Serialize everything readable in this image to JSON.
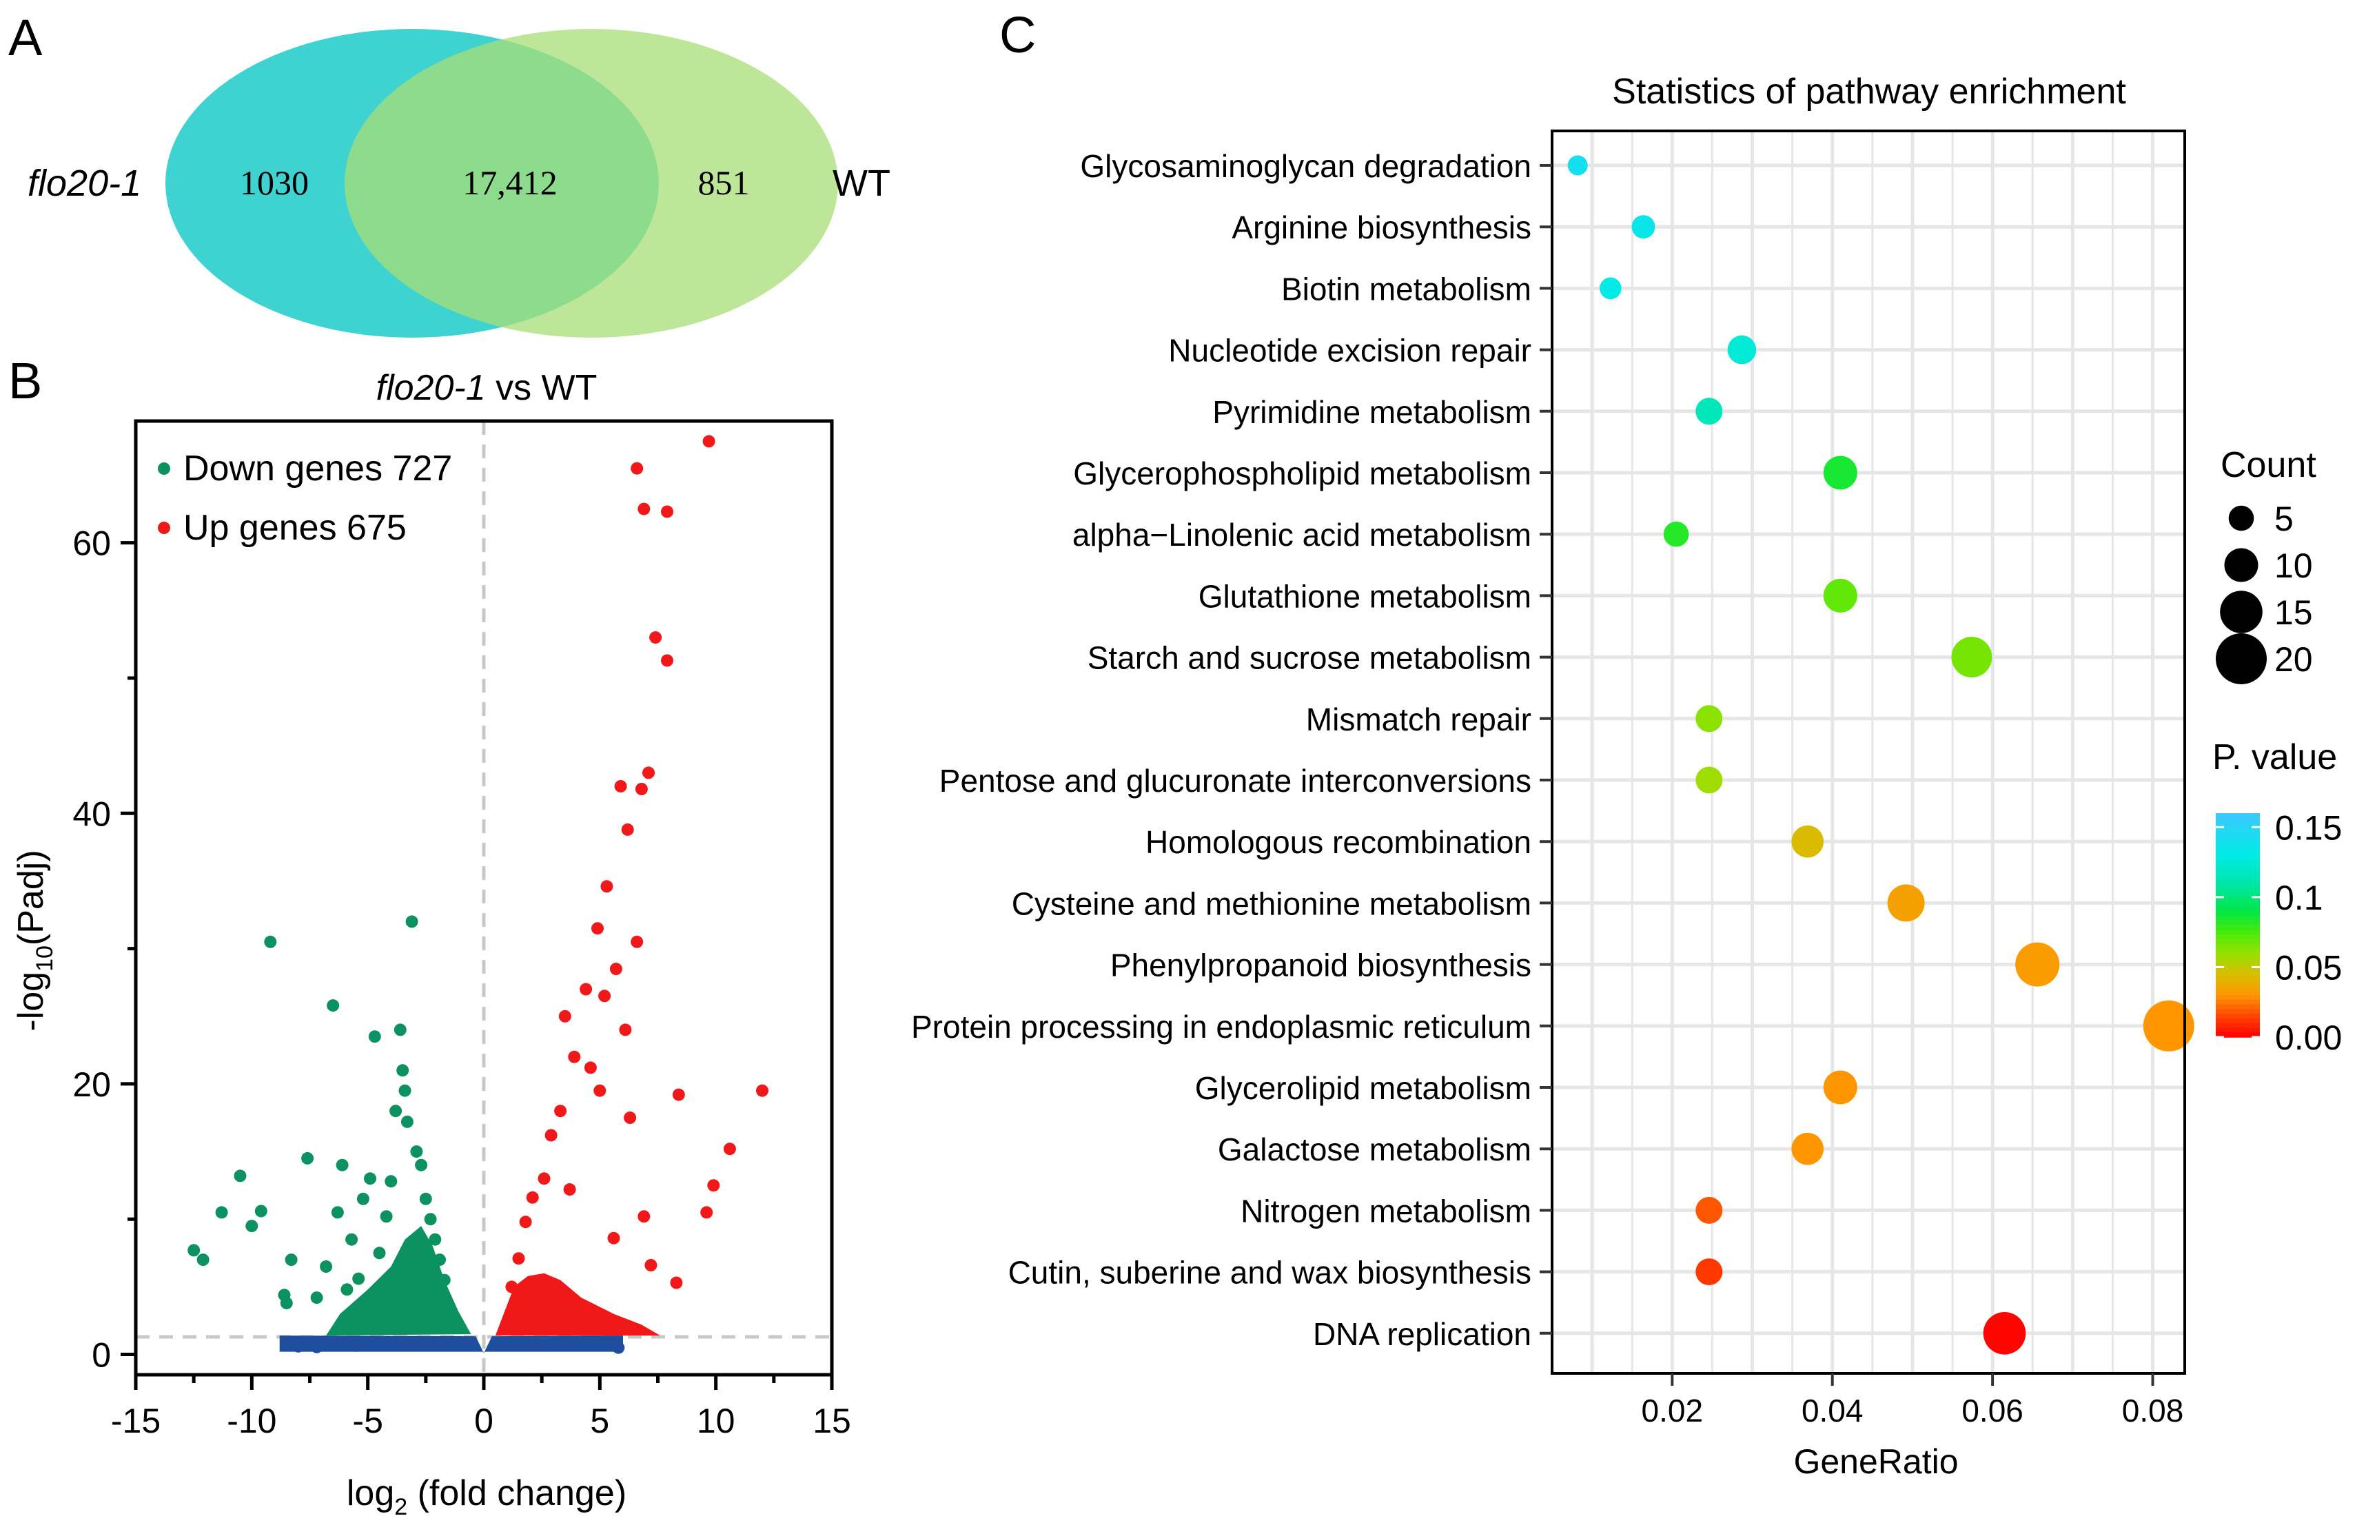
{
  "panels": {
    "a": "A",
    "b": "B",
    "c": "C"
  },
  "colors": {
    "venn_left": "#2ecfcc",
    "venn_right": "#a8dd76",
    "down": "#0c9160",
    "up": "#f01818",
    "ns": "#1f4e9e",
    "threshold": "#c8c8c8",
    "grid": "#e6e6e6"
  },
  "chart_data": [
    {
      "type": "venn",
      "sets": [
        {
          "name": "flo20-1",
          "only": "1030"
        },
        {
          "name": "WT",
          "only": "851"
        }
      ],
      "intersection": "17,412"
    },
    {
      "type": "scatter",
      "title_italic": "flo20-1",
      "title_rest": " vs WT",
      "xlabel_prefix": "log",
      "xlabel_sub": "2",
      "xlabel_suffix": " (fold change)",
      "ylabel_prefix": "-log",
      "ylabel_sub": "10",
      "ylabel_suffix": "(Padj)",
      "xlim": [
        -15,
        15
      ],
      "ylim": [
        -1.5,
        69
      ],
      "xticks": [
        -15,
        -10,
        -5,
        0,
        5,
        10,
        15
      ],
      "yticks": [
        0,
        20,
        40,
        60
      ],
      "threshold_y": 1.3,
      "threshold_x": 0,
      "legend": [
        {
          "label": "Down genes 727",
          "series": "down"
        },
        {
          "label": "Up genes 675",
          "series": "up"
        }
      ],
      "series": {
        "down": [
          [
            -12.5,
            7.7
          ],
          [
            -12.1,
            7.0
          ],
          [
            -11.3,
            10.5
          ],
          [
            -10.5,
            13.2
          ],
          [
            -10.0,
            9.5
          ],
          [
            -9.6,
            10.6
          ],
          [
            -9.2,
            30.5
          ],
          [
            -8.6,
            4.4
          ],
          [
            -8.5,
            3.8
          ],
          [
            -8.3,
            7.0
          ],
          [
            -7.6,
            14.5
          ],
          [
            -7.2,
            4.2
          ],
          [
            -6.8,
            6.5
          ],
          [
            -6.5,
            25.8
          ],
          [
            -6.3,
            10.5
          ],
          [
            -6.1,
            14.0
          ],
          [
            -5.9,
            4.8
          ],
          [
            -5.7,
            8.5
          ],
          [
            -5.4,
            5.6
          ],
          [
            -5.2,
            11.5
          ],
          [
            -4.9,
            13.0
          ],
          [
            -4.7,
            23.5
          ],
          [
            -4.5,
            7.5
          ],
          [
            -4.2,
            10.2
          ],
          [
            -4.0,
            12.8
          ],
          [
            -3.8,
            18.0
          ],
          [
            -3.6,
            24.0
          ],
          [
            -3.5,
            21.0
          ],
          [
            -3.4,
            19.5
          ],
          [
            -3.3,
            17.2
          ],
          [
            -3.1,
            32.0
          ],
          [
            -2.9,
            15.0
          ],
          [
            -2.7,
            14.0
          ],
          [
            -2.5,
            11.5
          ],
          [
            -2.3,
            10.0
          ],
          [
            -2.1,
            8.5
          ],
          [
            -1.9,
            7.0
          ],
          [
            -1.7,
            5.5
          ]
        ],
        "up": [
          [
            9.7,
            67.5
          ],
          [
            6.6,
            65.5
          ],
          [
            6.9,
            62.5
          ],
          [
            7.9,
            62.3
          ],
          [
            7.4,
            53.0
          ],
          [
            7.9,
            51.3
          ],
          [
            7.1,
            43.0
          ],
          [
            6.8,
            41.8
          ],
          [
            5.9,
            42.0
          ],
          [
            6.2,
            38.8
          ],
          [
            5.3,
            34.6
          ],
          [
            4.9,
            31.5
          ],
          [
            6.6,
            30.5
          ],
          [
            5.7,
            28.5
          ],
          [
            4.4,
            27.0
          ],
          [
            5.2,
            26.5
          ],
          [
            3.5,
            25.0
          ],
          [
            6.1,
            24.0
          ],
          [
            3.9,
            22.0
          ],
          [
            4.6,
            21.2
          ],
          [
            5.0,
            19.5
          ],
          [
            8.4,
            19.2
          ],
          [
            12.0,
            19.5
          ],
          [
            3.3,
            18.0
          ],
          [
            6.3,
            17.5
          ],
          [
            2.9,
            16.2
          ],
          [
            10.6,
            15.2
          ],
          [
            9.9,
            12.5
          ],
          [
            2.6,
            13.0
          ],
          [
            3.7,
            12.2
          ],
          [
            6.9,
            10.2
          ],
          [
            9.6,
            10.5
          ],
          [
            2.1,
            11.6
          ],
          [
            1.8,
            9.8
          ],
          [
            5.6,
            8.6
          ],
          [
            1.5,
            7.1
          ],
          [
            7.2,
            6.6
          ],
          [
            1.2,
            5.0
          ],
          [
            8.3,
            5.3
          ]
        ],
        "ns": [
          [
            -8.0,
            0.6
          ],
          [
            -7.2,
            0.55
          ],
          [
            -6.2,
            0.7
          ],
          [
            -5.5,
            0.65
          ],
          [
            -4.8,
            0.8
          ],
          [
            5.3,
            0.9
          ],
          [
            5.8,
            0.5
          ]
        ]
      }
    },
    {
      "type": "scatter",
      "title": "Statistics of pathway enrichment",
      "xlabel": "GeneRatio",
      "xlim": [
        0.005,
        0.084
      ],
      "xticks": [
        0.02,
        0.04,
        0.06,
        0.08
      ],
      "xtick_labels": [
        "0.02",
        "0.04",
        "0.06",
        "0.08"
      ],
      "size_legend_title": "Count",
      "size_legend": [
        5,
        10,
        15,
        20
      ],
      "color_legend_title": "P. value",
      "color_legend_ticks": [
        0.15,
        0.1,
        0.05,
        0.0
      ],
      "color_legend_labels": [
        "0.15",
        "0.1",
        "0.05",
        "0.00"
      ],
      "color_range": [
        0.0,
        0.16
      ],
      "pathways": [
        {
          "name": "Glycosaminoglycan degradation",
          "gene_ratio": 0.0082,
          "count": 2,
          "pvalue": 0.14
        },
        {
          "name": "Arginine biosynthesis",
          "gene_ratio": 0.0164,
          "count": 4,
          "pvalue": 0.135
        },
        {
          "name": "Biotin metabolism",
          "gene_ratio": 0.0123,
          "count": 3,
          "pvalue": 0.13
        },
        {
          "name": "Nucleotide excision repair",
          "gene_ratio": 0.0287,
          "count": 7,
          "pvalue": 0.125
        },
        {
          "name": "Pyrimidine metabolism",
          "gene_ratio": 0.0246,
          "count": 6,
          "pvalue": 0.115
        },
        {
          "name": "Glycerophospholipid metabolism",
          "gene_ratio": 0.041,
          "count": 10,
          "pvalue": 0.085
        },
        {
          "name": "alpha−Linolenic acid metabolism",
          "gene_ratio": 0.0205,
          "count": 5,
          "pvalue": 0.082
        },
        {
          "name": "Glutathione metabolism",
          "gene_ratio": 0.041,
          "count": 10,
          "pvalue": 0.07
        },
        {
          "name": "Starch and sucrose metabolism",
          "gene_ratio": 0.0574,
          "count": 14,
          "pvalue": 0.066
        },
        {
          "name": "Mismatch repair",
          "gene_ratio": 0.0246,
          "count": 6,
          "pvalue": 0.062
        },
        {
          "name": "Pentose and glucuronate interconversions",
          "gene_ratio": 0.0246,
          "count": 6,
          "pvalue": 0.058
        },
        {
          "name": "Homologous recombination",
          "gene_ratio": 0.0369,
          "count": 9,
          "pvalue": 0.044
        },
        {
          "name": "Cysteine and methionine metabolism",
          "gene_ratio": 0.0492,
          "count": 12,
          "pvalue": 0.034
        },
        {
          "name": "Phenylpropanoid biosynthesis",
          "gene_ratio": 0.0656,
          "count": 16,
          "pvalue": 0.032
        },
        {
          "name": "Protein processing in endoplasmic reticulum",
          "gene_ratio": 0.082,
          "count": 20,
          "pvalue": 0.03
        },
        {
          "name": "Glycerolipid metabolism",
          "gene_ratio": 0.041,
          "count": 10,
          "pvalue": 0.03
        },
        {
          "name": "Galactose metabolism",
          "gene_ratio": 0.0369,
          "count": 9,
          "pvalue": 0.03
        },
        {
          "name": "Nitrogen metabolism",
          "gene_ratio": 0.0246,
          "count": 6,
          "pvalue": 0.018
        },
        {
          "name": "Cutin, suberine and wax biosynthesis",
          "gene_ratio": 0.0246,
          "count": 6,
          "pvalue": 0.012
        },
        {
          "name": "DNA replication",
          "gene_ratio": 0.0615,
          "count": 15,
          "pvalue": 0.001
        }
      ]
    }
  ]
}
